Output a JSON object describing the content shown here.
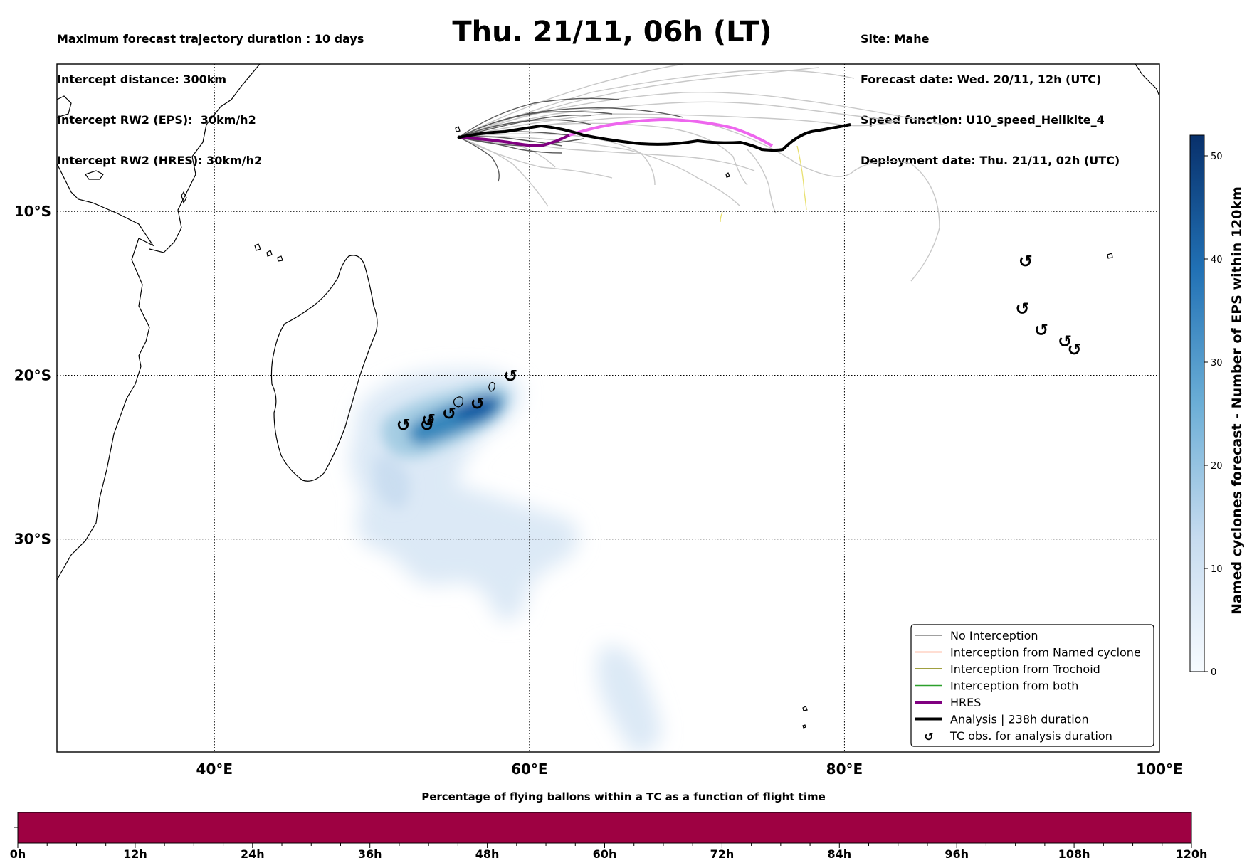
{
  "header_left": {
    "line1": "Maximum forecast trajectory duration : 10 days",
    "line2": "Intercept distance: 300km",
    "line3": "Intercept RW2 (EPS):  30km/h2",
    "line4": "Intercept RW2 (HRES): 30km/h2"
  },
  "title": "Thu. 21/11, 06h (LT)",
  "header_right": {
    "line1": "Site: Mahe",
    "line2": "Forecast date: Wed. 20/11, 12h (UTC)",
    "line3": "Speed function: U10_speed_Helikite_4",
    "line4": "Deployment date: Thu. 21/11, 02h (UTC)"
  },
  "map": {
    "lon_range": [
      30,
      100
    ],
    "lat_range": [
      -43,
      -1
    ],
    "lon_ticks": [
      {
        "value": 40,
        "label": "40°E"
      },
      {
        "value": 60,
        "label": "60°E"
      },
      {
        "value": 80,
        "label": "80°E"
      },
      {
        "value": 100,
        "label": "100°E"
      }
    ],
    "lat_ticks": [
      {
        "value": -10,
        "label": "10°S"
      },
      {
        "value": -20,
        "label": "20°S"
      },
      {
        "value": -30,
        "label": "30°S"
      }
    ],
    "gridlines": "dotted",
    "site": {
      "name": "Mahe",
      "lon": 55.5,
      "lat": -4.6
    }
  },
  "legend": {
    "position": "lower-right",
    "items": [
      {
        "label": "No Interception",
        "color": "#808080",
        "kind": "thin-line"
      },
      {
        "label": "Interception from Named cyclone",
        "color": "#ff7f50",
        "kind": "thin-line"
      },
      {
        "label": "Interception from Trochoid",
        "color": "#808000",
        "kind": "thin-line"
      },
      {
        "label": "Interception from both",
        "color": "#2ca02c",
        "kind": "thin-line"
      },
      {
        "label": "HRES",
        "color": "#800080",
        "kind": "thick-line"
      },
      {
        "label": "Analysis | 238h duration",
        "color": "#000000",
        "kind": "thick-line"
      },
      {
        "label": "TC obs. for analysis duration",
        "color": "#000000",
        "kind": "tc-symbol"
      }
    ]
  },
  "tc_symbol": "↺",
  "tc_obs": [
    {
      "lon": 91.5,
      "lat": -13.0
    },
    {
      "lon": 91.3,
      "lat": -15.9
    },
    {
      "lon": 92.5,
      "lat": -17.2
    },
    {
      "lon": 94.0,
      "lat": -17.9
    },
    {
      "lon": 94.6,
      "lat": -18.4
    },
    {
      "lon": 58.8,
      "lat": -20.0
    },
    {
      "lon": 56.7,
      "lat": -21.7
    },
    {
      "lon": 54.9,
      "lat": -22.3
    },
    {
      "lon": 53.6,
      "lat": -22.7
    },
    {
      "lon": 53.5,
      "lat": -23.0
    },
    {
      "lon": 52.0,
      "lat": -23.0
    }
  ],
  "colorbar": {
    "title": "Named cyclones forecast - Number of EPS within 120km",
    "min": 0,
    "max": 52,
    "ticks": [
      0,
      10,
      20,
      30,
      40,
      50
    ],
    "color_low": "#f7fbff",
    "color_high": "#08306b"
  },
  "bottom_bar": {
    "title": "Percentage of flying ballons within a TC as a function of flight time",
    "fill_color": "#9e0142",
    "tick_labels": [
      "0h",
      "12h",
      "24h",
      "36h",
      "48h",
      "60h",
      "72h",
      "84h",
      "96h",
      "108h",
      "120h"
    ]
  },
  "colors": {
    "hres": "#800080",
    "hres_bright": "#ee66ee",
    "analysis": "#000000",
    "eps_dark": "#555555",
    "eps_light": "#c8c8c8",
    "trochoid_yellow": "#e8e070",
    "density": "#2171b5"
  }
}
